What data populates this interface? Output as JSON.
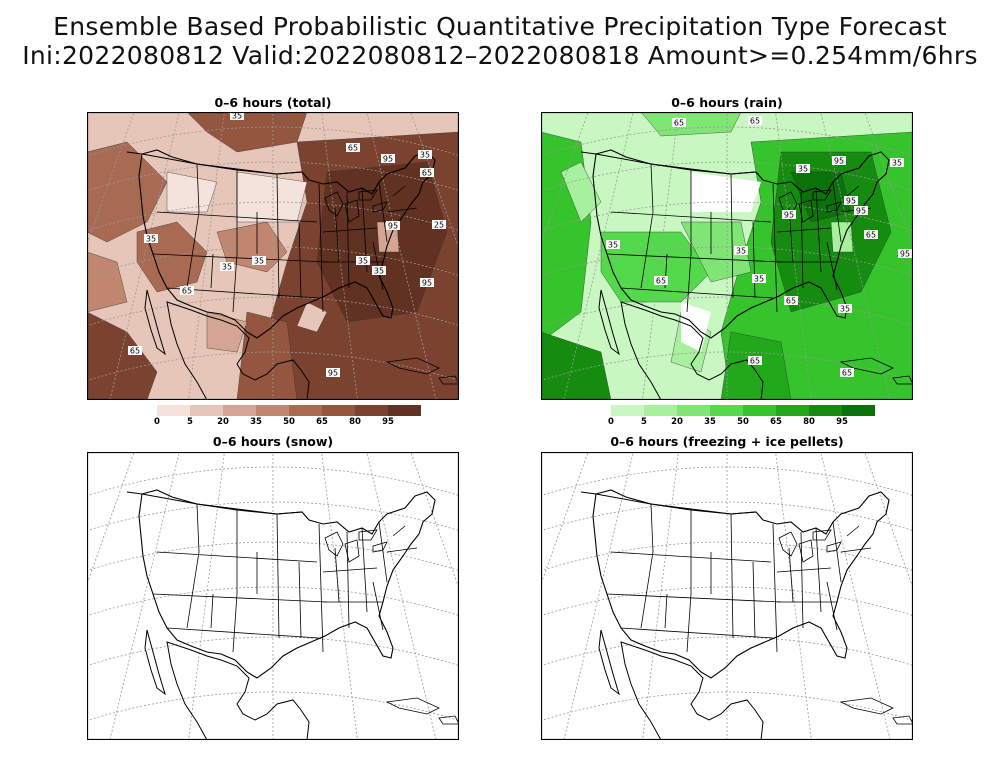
{
  "title": {
    "line1": "Ensemble Based Probabilistic Quantitative Precipitation Type Forecast",
    "line2": "Ini:2022080812 Valid:2022080812–2022080818 Amount>=0.254mm/6hrs"
  },
  "panels": [
    {
      "id": "total",
      "title": "0–6 hours (total)",
      "filled": true,
      "palette": "brown"
    },
    {
      "id": "rain",
      "title": "0–6 hours (rain)",
      "filled": true,
      "palette": "green"
    },
    {
      "id": "snow",
      "title": "0–6 hours (snow)",
      "filled": false
    },
    {
      "id": "frz",
      "title": "0–6 hours (freezing + ice pellets)",
      "filled": false
    }
  ],
  "colorbars": {
    "brown": {
      "labels": [
        "0",
        "5",
        "20",
        "35",
        "50",
        "65",
        "80",
        "95"
      ],
      "colors": [
        "#f3e3dc",
        "#e6c6b8",
        "#d4a592",
        "#c0866f",
        "#a96a53",
        "#94563f",
        "#7b4230",
        "#613121"
      ]
    },
    "green": {
      "labels": [
        "0",
        "5",
        "20",
        "35",
        "50",
        "65",
        "80",
        "95"
      ],
      "colors": [
        "#c8f7c2",
        "#a6f09e",
        "#7fe676",
        "#55d94c",
        "#35c42c",
        "#22a81b",
        "#158c10",
        "#0a720a"
      ]
    }
  },
  "contour_labels": {
    "total": [
      "35",
      "65",
      "95",
      "35",
      "35",
      "65",
      "35",
      "35",
      "95",
      "65",
      "35",
      "35",
      "95",
      "65",
      "25",
      "95"
    ],
    "rain": [
      "65",
      "65",
      "35",
      "95",
      "95",
      "35",
      "65",
      "95",
      "35",
      "35",
      "65",
      "95",
      "65",
      "35",
      "95",
      "35",
      "65",
      "65"
    ]
  }
}
